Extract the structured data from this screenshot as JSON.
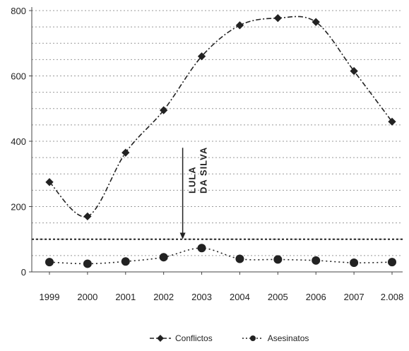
{
  "chart_data": {
    "type": "line",
    "categories": [
      "1999",
      "2000",
      "2001",
      "2002",
      "2003",
      "2004",
      "2005",
      "2006",
      "2007",
      "2.008"
    ],
    "ylim": [
      0,
      800
    ],
    "yticks": [
      "0",
      "200",
      "400",
      "600",
      "800"
    ],
    "grid": true,
    "legend_position": "bottom",
    "series": [
      {
        "name": "Conflictos",
        "values": [
          275,
          170,
          365,
          495,
          660,
          755,
          777,
          765,
          615,
          460
        ],
        "color": "#222222",
        "marker": "diamond"
      },
      {
        "name": "Asesinatos",
        "values": [
          30,
          25,
          32,
          45,
          73,
          40,
          38,
          35,
          28,
          30
        ],
        "color": "#222222",
        "marker": "circle"
      }
    ],
    "annotation": {
      "lines": [
        "LULA",
        "DA SILVA"
      ],
      "at_category": "2003"
    },
    "reference_line": 100
  }
}
